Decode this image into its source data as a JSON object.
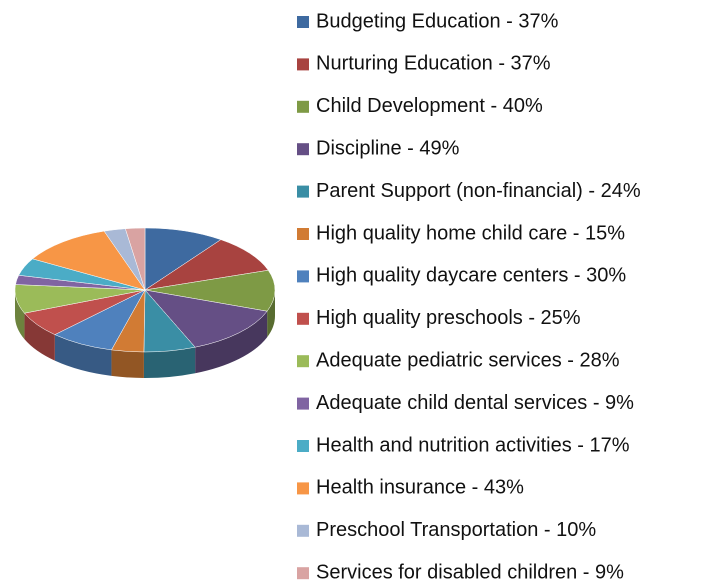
{
  "chart_data": {
    "type": "pie",
    "categories": [
      "Budgeting Education - 37%",
      "Nurturing Education - 37%",
      "Child Development - 40%",
      "Discipline - 49%",
      "Parent Support (non-financial) - 24%",
      "High quality home child care - 15%",
      "High quality daycare centers - 30%",
      "High quality preschools - 25%",
      "Adequate pediatric services - 28%",
      "Adequate child dental services - 9%",
      "Health and nutrition activities - 17%",
      "Health insurance - 43%",
      "Preschool Transportation - 10%",
      "Services for disabled children - 9%"
    ],
    "values": [
      37,
      37,
      40,
      49,
      24,
      15,
      30,
      25,
      28,
      9,
      17,
      43,
      10,
      9
    ],
    "colors": [
      "#3E6AA0",
      "#A84340",
      "#7E9A45",
      "#654F85",
      "#3A8EA5",
      "#D17B34",
      "#4F81BD",
      "#C0504D",
      "#9BBB59",
      "#8064A2",
      "#4BACC6",
      "#F79646",
      "#A9B9D6",
      "#D9A3A2"
    ],
    "legend": "right"
  }
}
